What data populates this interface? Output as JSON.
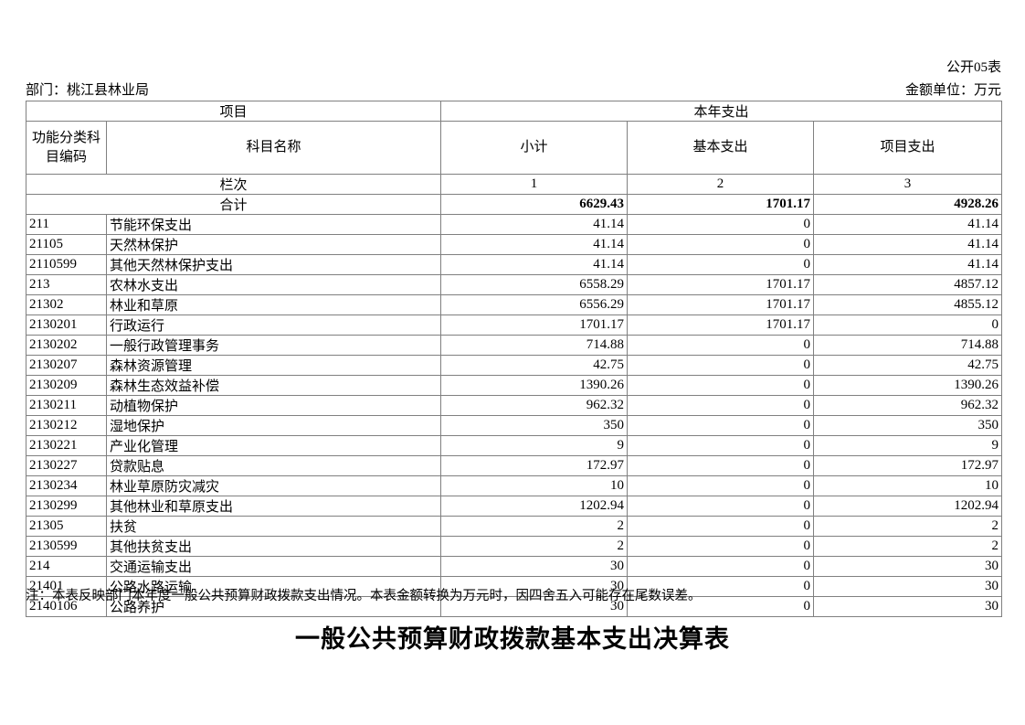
{
  "page": {
    "form_code": "公开05表",
    "department": "部门：桃江县林业局",
    "unit": "金额单位：万元",
    "note": "注：本表反映部门本年度一般公共预算财政拨款支出情况。本表金额转换为万元时，因四舍五入可能存在尾数误差。",
    "title": "一般公共预算财政拨款基本支出决算表"
  },
  "table": {
    "header": {
      "project_group": "项目",
      "year_expense_group": "本年支出",
      "code_label": "功能分类科目编码",
      "name_label": "科目名称",
      "subtotal_label": "小计",
      "basic_label": "基本支出",
      "project_label": "项目支出",
      "column_row_label": "栏次",
      "col1": "1",
      "col2": "2",
      "col3": "3"
    },
    "total_row": {
      "label": "合计",
      "subtotal": "6629.43",
      "basic": "1701.17",
      "project": "4928.26"
    },
    "rows": [
      {
        "code": "211",
        "name": "节能环保支出",
        "subtotal": "41.14",
        "basic": "0",
        "project": "41.14"
      },
      {
        "code": "21105",
        "name": "天然林保护",
        "subtotal": "41.14",
        "basic": "0",
        "project": "41.14"
      },
      {
        "code": "2110599",
        "name": "其他天然林保护支出",
        "subtotal": "41.14",
        "basic": "0",
        "project": "41.14"
      },
      {
        "code": "213",
        "name": "农林水支出",
        "subtotal": "6558.29",
        "basic": "1701.17",
        "project": "4857.12"
      },
      {
        "code": "21302",
        "name": "林业和草原",
        "subtotal": "6556.29",
        "basic": "1701.17",
        "project": "4855.12"
      },
      {
        "code": "2130201",
        "name": "行政运行",
        "subtotal": "1701.17",
        "basic": "1701.17",
        "project": "0"
      },
      {
        "code": "2130202",
        "name": "一般行政管理事务",
        "subtotal": "714.88",
        "basic": "0",
        "project": "714.88"
      },
      {
        "code": "2130207",
        "name": "森林资源管理",
        "subtotal": "42.75",
        "basic": "0",
        "project": "42.75"
      },
      {
        "code": "2130209",
        "name": "森林生态效益补偿",
        "subtotal": "1390.26",
        "basic": "0",
        "project": "1390.26"
      },
      {
        "code": "2130211",
        "name": "动植物保护",
        "subtotal": "962.32",
        "basic": "0",
        "project": "962.32"
      },
      {
        "code": "2130212",
        "name": "湿地保护",
        "subtotal": "350",
        "basic": "0",
        "project": "350"
      },
      {
        "code": "2130221",
        "name": "产业化管理",
        "subtotal": "9",
        "basic": "0",
        "project": "9"
      },
      {
        "code": "2130227",
        "name": "贷款贴息",
        "subtotal": "172.97",
        "basic": "0",
        "project": "172.97"
      },
      {
        "code": "2130234",
        "name": "林业草原防灾减灾",
        "subtotal": "10",
        "basic": "0",
        "project": "10"
      },
      {
        "code": "2130299",
        "name": "其他林业和草原支出",
        "subtotal": "1202.94",
        "basic": "0",
        "project": "1202.94"
      },
      {
        "code": "21305",
        "name": "扶贫",
        "subtotal": "2",
        "basic": "0",
        "project": "2"
      },
      {
        "code": "2130599",
        "name": "其他扶贫支出",
        "subtotal": "2",
        "basic": "0",
        "project": "2"
      },
      {
        "code": "214",
        "name": "交通运输支出",
        "subtotal": "30",
        "basic": "0",
        "project": "30"
      },
      {
        "code": "21401",
        "name": "公路水路运输",
        "subtotal": "30",
        "basic": "0",
        "project": "30"
      },
      {
        "code": "2140106",
        "name": "公路养护",
        "subtotal": "30",
        "basic": "0",
        "project": "30"
      }
    ]
  }
}
